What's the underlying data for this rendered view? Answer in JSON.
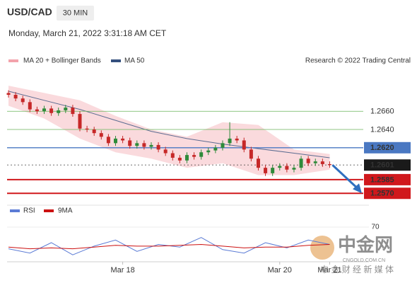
{
  "header": {
    "symbol": "USD/CAD",
    "interval": "30 MIN",
    "timestamp": "Monday, March 21, 2022 3:31:18 AM CET",
    "credit": "Research © 2022 Trading Central"
  },
  "chart_data": [
    {
      "type": "candlestick",
      "open": [
        1.268,
        1.2678,
        1.2674,
        1.267,
        1.2662,
        1.266,
        1.2663,
        1.2658,
        1.2661,
        1.2664,
        1.2657,
        1.2641,
        1.264,
        1.2636,
        1.2632,
        1.2625,
        1.263,
        1.2628,
        1.2622,
        1.2625,
        1.2621,
        1.2623,
        1.2618,
        1.2614,
        1.2609,
        1.2606,
        1.2612,
        1.261,
        1.2615,
        1.2617,
        1.262,
        1.2625,
        1.263,
        1.2628,
        1.2618,
        1.2608,
        1.2598,
        1.2592,
        1.2598,
        1.26,
        1.2596,
        1.2598,
        1.2608,
        1.2603,
        1.2605,
        1.2602
      ],
      "high": [
        1.2683,
        1.2681,
        1.2677,
        1.2673,
        1.2665,
        1.2666,
        1.2666,
        1.2664,
        1.2667,
        1.2667,
        1.266,
        1.2644,
        1.2643,
        1.2639,
        1.2635,
        1.2633,
        1.2633,
        1.2631,
        1.2628,
        1.2628,
        1.2626,
        1.2626,
        1.2621,
        1.2617,
        1.2612,
        1.2615,
        1.2615,
        1.2618,
        1.262,
        1.2623,
        1.2628,
        1.2648,
        1.2633,
        1.2631,
        1.2621,
        1.2611,
        1.2601,
        1.2601,
        1.2603,
        1.2603,
        1.2601,
        1.2611,
        1.2611,
        1.2608,
        1.2608,
        1.2605
      ],
      "low": [
        1.2675,
        1.2671,
        1.2667,
        1.2659,
        1.2657,
        1.2657,
        1.2655,
        1.2655,
        1.2658,
        1.2654,
        1.2638,
        1.2637,
        1.2633,
        1.2629,
        1.2622,
        1.2622,
        1.2625,
        1.2619,
        1.2619,
        1.2618,
        1.2618,
        1.2615,
        1.2611,
        1.2606,
        1.2603,
        1.2603,
        1.2607,
        1.2607,
        1.2612,
        1.2614,
        1.2617,
        1.2622,
        1.2625,
        1.2615,
        1.2605,
        1.2595,
        1.2589,
        1.2589,
        1.2595,
        1.2593,
        1.2593,
        1.2595,
        1.26,
        1.26,
        1.2599,
        1.2598
      ],
      "close": [
        1.2678,
        1.2674,
        1.267,
        1.2662,
        1.266,
        1.2663,
        1.2658,
        1.2661,
        1.2664,
        1.2657,
        1.2641,
        1.264,
        1.2636,
        1.2632,
        1.2625,
        1.263,
        1.2628,
        1.2622,
        1.2625,
        1.2621,
        1.2623,
        1.2618,
        1.2614,
        1.2609,
        1.2606,
        1.2612,
        1.261,
        1.2615,
        1.2617,
        1.262,
        1.2625,
        1.263,
        1.2628,
        1.2618,
        1.2608,
        1.2598,
        1.2592,
        1.2598,
        1.26,
        1.2596,
        1.2598,
        1.2608,
        1.2603,
        1.2605,
        1.2602,
        1.2601
      ],
      "up_color": "#2e8b3a",
      "down_color": "#c62828",
      "series": [
        {
          "name": "MA 20 + Bollinger Bands",
          "color": "#f3a3ab",
          "x": [
            0,
            5,
            10,
            15,
            20,
            25,
            30,
            35,
            40,
            45
          ],
          "upper": [
            1.2688,
            1.268,
            1.2672,
            1.2655,
            1.264,
            1.2632,
            1.2648,
            1.2645,
            1.2618,
            1.2613
          ],
          "lower": [
            1.2666,
            1.2652,
            1.263,
            1.2615,
            1.2608,
            1.2598,
            1.2603,
            1.259,
            1.259,
            1.2596
          ]
        },
        {
          "name": "MA 50",
          "color": "#34507e",
          "x": [
            0,
            5,
            10,
            15,
            20,
            25,
            30,
            35,
            40,
            45
          ],
          "values": [
            1.2682,
            1.2672,
            1.2662,
            1.265,
            1.2638,
            1.263,
            1.2624,
            1.2619,
            1.2614,
            1.2609
          ]
        }
      ],
      "levels": [
        {
          "value": 1.266,
          "label": "1.2660",
          "color": "#6bb35a",
          "boxed": false
        },
        {
          "value": 1.264,
          "label": "1.2640",
          "color": "#6bb35a",
          "boxed": false
        },
        {
          "value": 1.262,
          "label": "1.2620",
          "color": "#4a78c2",
          "boxed": true
        },
        {
          "value": 1.2601,
          "label": "1.2601",
          "color": "#1a1a1a",
          "boxed": true
        },
        {
          "value": 1.2585,
          "label": "1.2585",
          "color": "#d0181c",
          "boxed": true
        },
        {
          "value": 1.257,
          "label": "1.2570",
          "color": "#d0181c",
          "boxed": true
        }
      ],
      "xlim": [
        -0.2,
        50.5
      ],
      "ylim": [
        1.2557,
        1.2685
      ]
    },
    {
      "type": "line",
      "series": [
        {
          "name": "RSI",
          "color": "#5b7bd5",
          "x": [
            0,
            3,
            6,
            9,
            12,
            15,
            18,
            21,
            24,
            27,
            30,
            33,
            36,
            39,
            42,
            45
          ],
          "values": [
            45,
            40,
            52,
            38,
            48,
            55,
            42,
            50,
            47,
            58,
            44,
            40,
            52,
            46,
            55,
            50
          ]
        },
        {
          "name": "9MA",
          "color": "#cc1111",
          "x": [
            0,
            3,
            6,
            9,
            12,
            15,
            18,
            21,
            24,
            27,
            30,
            33,
            36,
            39,
            42,
            45
          ],
          "values": [
            47,
            45,
            46,
            45,
            47,
            49,
            48,
            48,
            49,
            50,
            48,
            46,
            47,
            47,
            49,
            50
          ]
        }
      ],
      "xlim": [
        -0.2,
        50.5
      ],
      "ylim": [
        30,
        83
      ],
      "yticks": [
        70
      ],
      "xticks": [
        {
          "value": 16,
          "label": "Mar 18"
        },
        {
          "value": 38,
          "label": "Mar 20"
        },
        {
          "value": 45,
          "label": "Mar 21"
        }
      ]
    }
  ],
  "watermark": {
    "brand": "中金网",
    "site": "CNGOLD.COM.CN",
    "tagline": "中 金 财 经 新 媒 体"
  }
}
